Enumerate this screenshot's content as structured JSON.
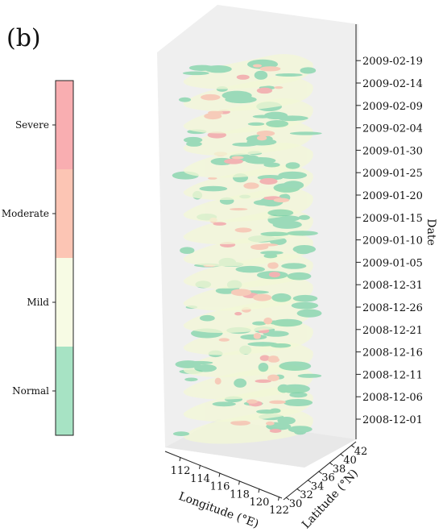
{
  "panel_label": "(b)",
  "chart_data": {
    "type": "3d-stacked-map",
    "title": "",
    "colorbar": {
      "categories": [
        "Normal",
        "Mild",
        "Moderate",
        "Severe"
      ],
      "colors": [
        "#a7e3c4",
        "#f7fbe4",
        "#fcc5b4",
        "#f9aeb1"
      ]
    },
    "z_axis": {
      "label": "Date",
      "ticks": [
        "2008-12-01",
        "2008-12-06",
        "2008-12-11",
        "2008-12-16",
        "2008-12-21",
        "2008-12-26",
        "2008-12-31",
        "2009-01-05",
        "2009-01-10",
        "2009-01-15",
        "2009-01-20",
        "2009-01-25",
        "2009-01-30",
        "2009-02-04",
        "2009-02-09",
        "2009-02-14",
        "2009-02-19"
      ]
    },
    "x_axis": {
      "label": "Longitude (°E)",
      "ticks": [
        "112",
        "114",
        "116",
        "118",
        "120",
        "122"
      ]
    },
    "y_axis": {
      "label": "Latitude (°N)",
      "ticks": [
        "30",
        "32",
        "34",
        "36",
        "38",
        "40",
        "42"
      ]
    },
    "layers": [
      "2008-12-01",
      "2008-12-06",
      "2008-12-11",
      "2008-12-16",
      "2008-12-21",
      "2008-12-26",
      "2008-12-31",
      "2009-01-05",
      "2009-01-10",
      "2009-01-15",
      "2009-01-20",
      "2009-01-25",
      "2009-01-30",
      "2009-02-04",
      "2009-02-09",
      "2009-02-14",
      "2009-02-19"
    ]
  }
}
